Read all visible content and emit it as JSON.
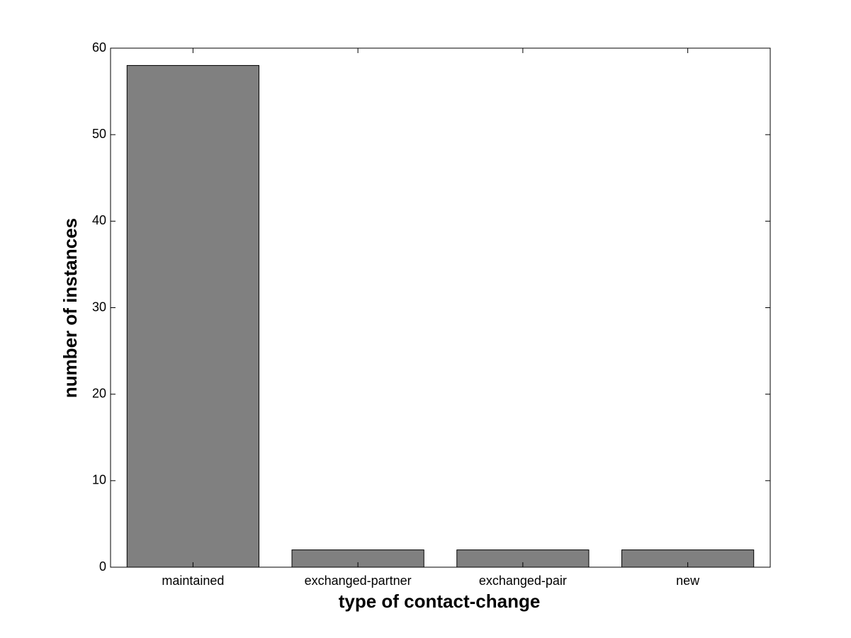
{
  "chart_data": {
    "type": "bar",
    "categories": [
      "maintained",
      "exchanged-partner",
      "exchanged-pair",
      "new"
    ],
    "values": [
      58,
      2,
      2,
      2
    ],
    "color": "#808080",
    "xlabel": "type of contact-change",
    "ylabel": "number of instances",
    "ylim": [
      0,
      60
    ],
    "yticks": [
      0,
      10,
      20,
      30,
      40,
      50,
      60
    ],
    "grid": false
  }
}
